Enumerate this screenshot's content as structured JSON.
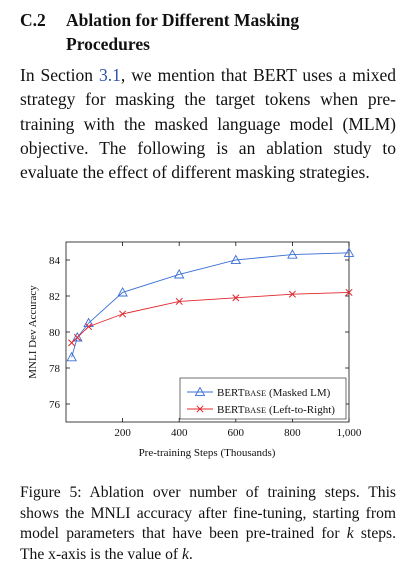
{
  "section": {
    "number": "C.2",
    "title": "Ablation for Different Masking Procedures"
  },
  "paragraph": {
    "before_ref": "In Section ",
    "ref": "3.1",
    "after_ref": ", we mention that BERT uses a mixed strategy for masking the target tokens when pre-training with the masked language model (MLM) objective. The following is an ablation study to evaluate the effect of different masking strategies."
  },
  "chart_data": {
    "type": "line",
    "xlabel": "Pre-training Steps (Thousands)",
    "ylabel": "MNLI Dev Accuracy",
    "xlim": [
      0,
      1000
    ],
    "ylim": [
      75,
      85
    ],
    "x_ticks": [
      "200",
      "400",
      "600",
      "800",
      "1,000"
    ],
    "y_ticks": [
      "76",
      "78",
      "80",
      "82",
      "84"
    ],
    "legend_position": "bottom-right",
    "series": [
      {
        "name": "BERTBASE (Masked LM)",
        "name_main": "BERT",
        "name_sub": "BASE",
        "name_rest": " (Masked LM)",
        "marker": "triangle",
        "color": "#3b6fd6",
        "x": [
          20,
          40,
          80,
          200,
          400,
          600,
          800,
          1000
        ],
        "y": [
          78.6,
          79.7,
          80.5,
          82.2,
          83.2,
          84.0,
          84.3,
          84.4
        ]
      },
      {
        "name": "BERTBASE (Left-to-Right)",
        "name_main": "BERT",
        "name_sub": "BASE",
        "name_rest": " (Left-to-Right)",
        "marker": "cross",
        "color": "#e0282e",
        "x": [
          20,
          40,
          80,
          200,
          400,
          600,
          800,
          1000
        ],
        "y": [
          79.4,
          79.7,
          80.3,
          81.0,
          81.7,
          81.9,
          82.1,
          82.2
        ]
      }
    ]
  },
  "caption": {
    "text_a": "Figure 5: Ablation over number of training steps. This shows the MNLI accuracy after fine-tuning, starting from model parameters that have been pre-trained for ",
    "k1": "k",
    "text_b": " steps. The x-axis is the value of ",
    "k2": "k",
    "text_c": "."
  }
}
